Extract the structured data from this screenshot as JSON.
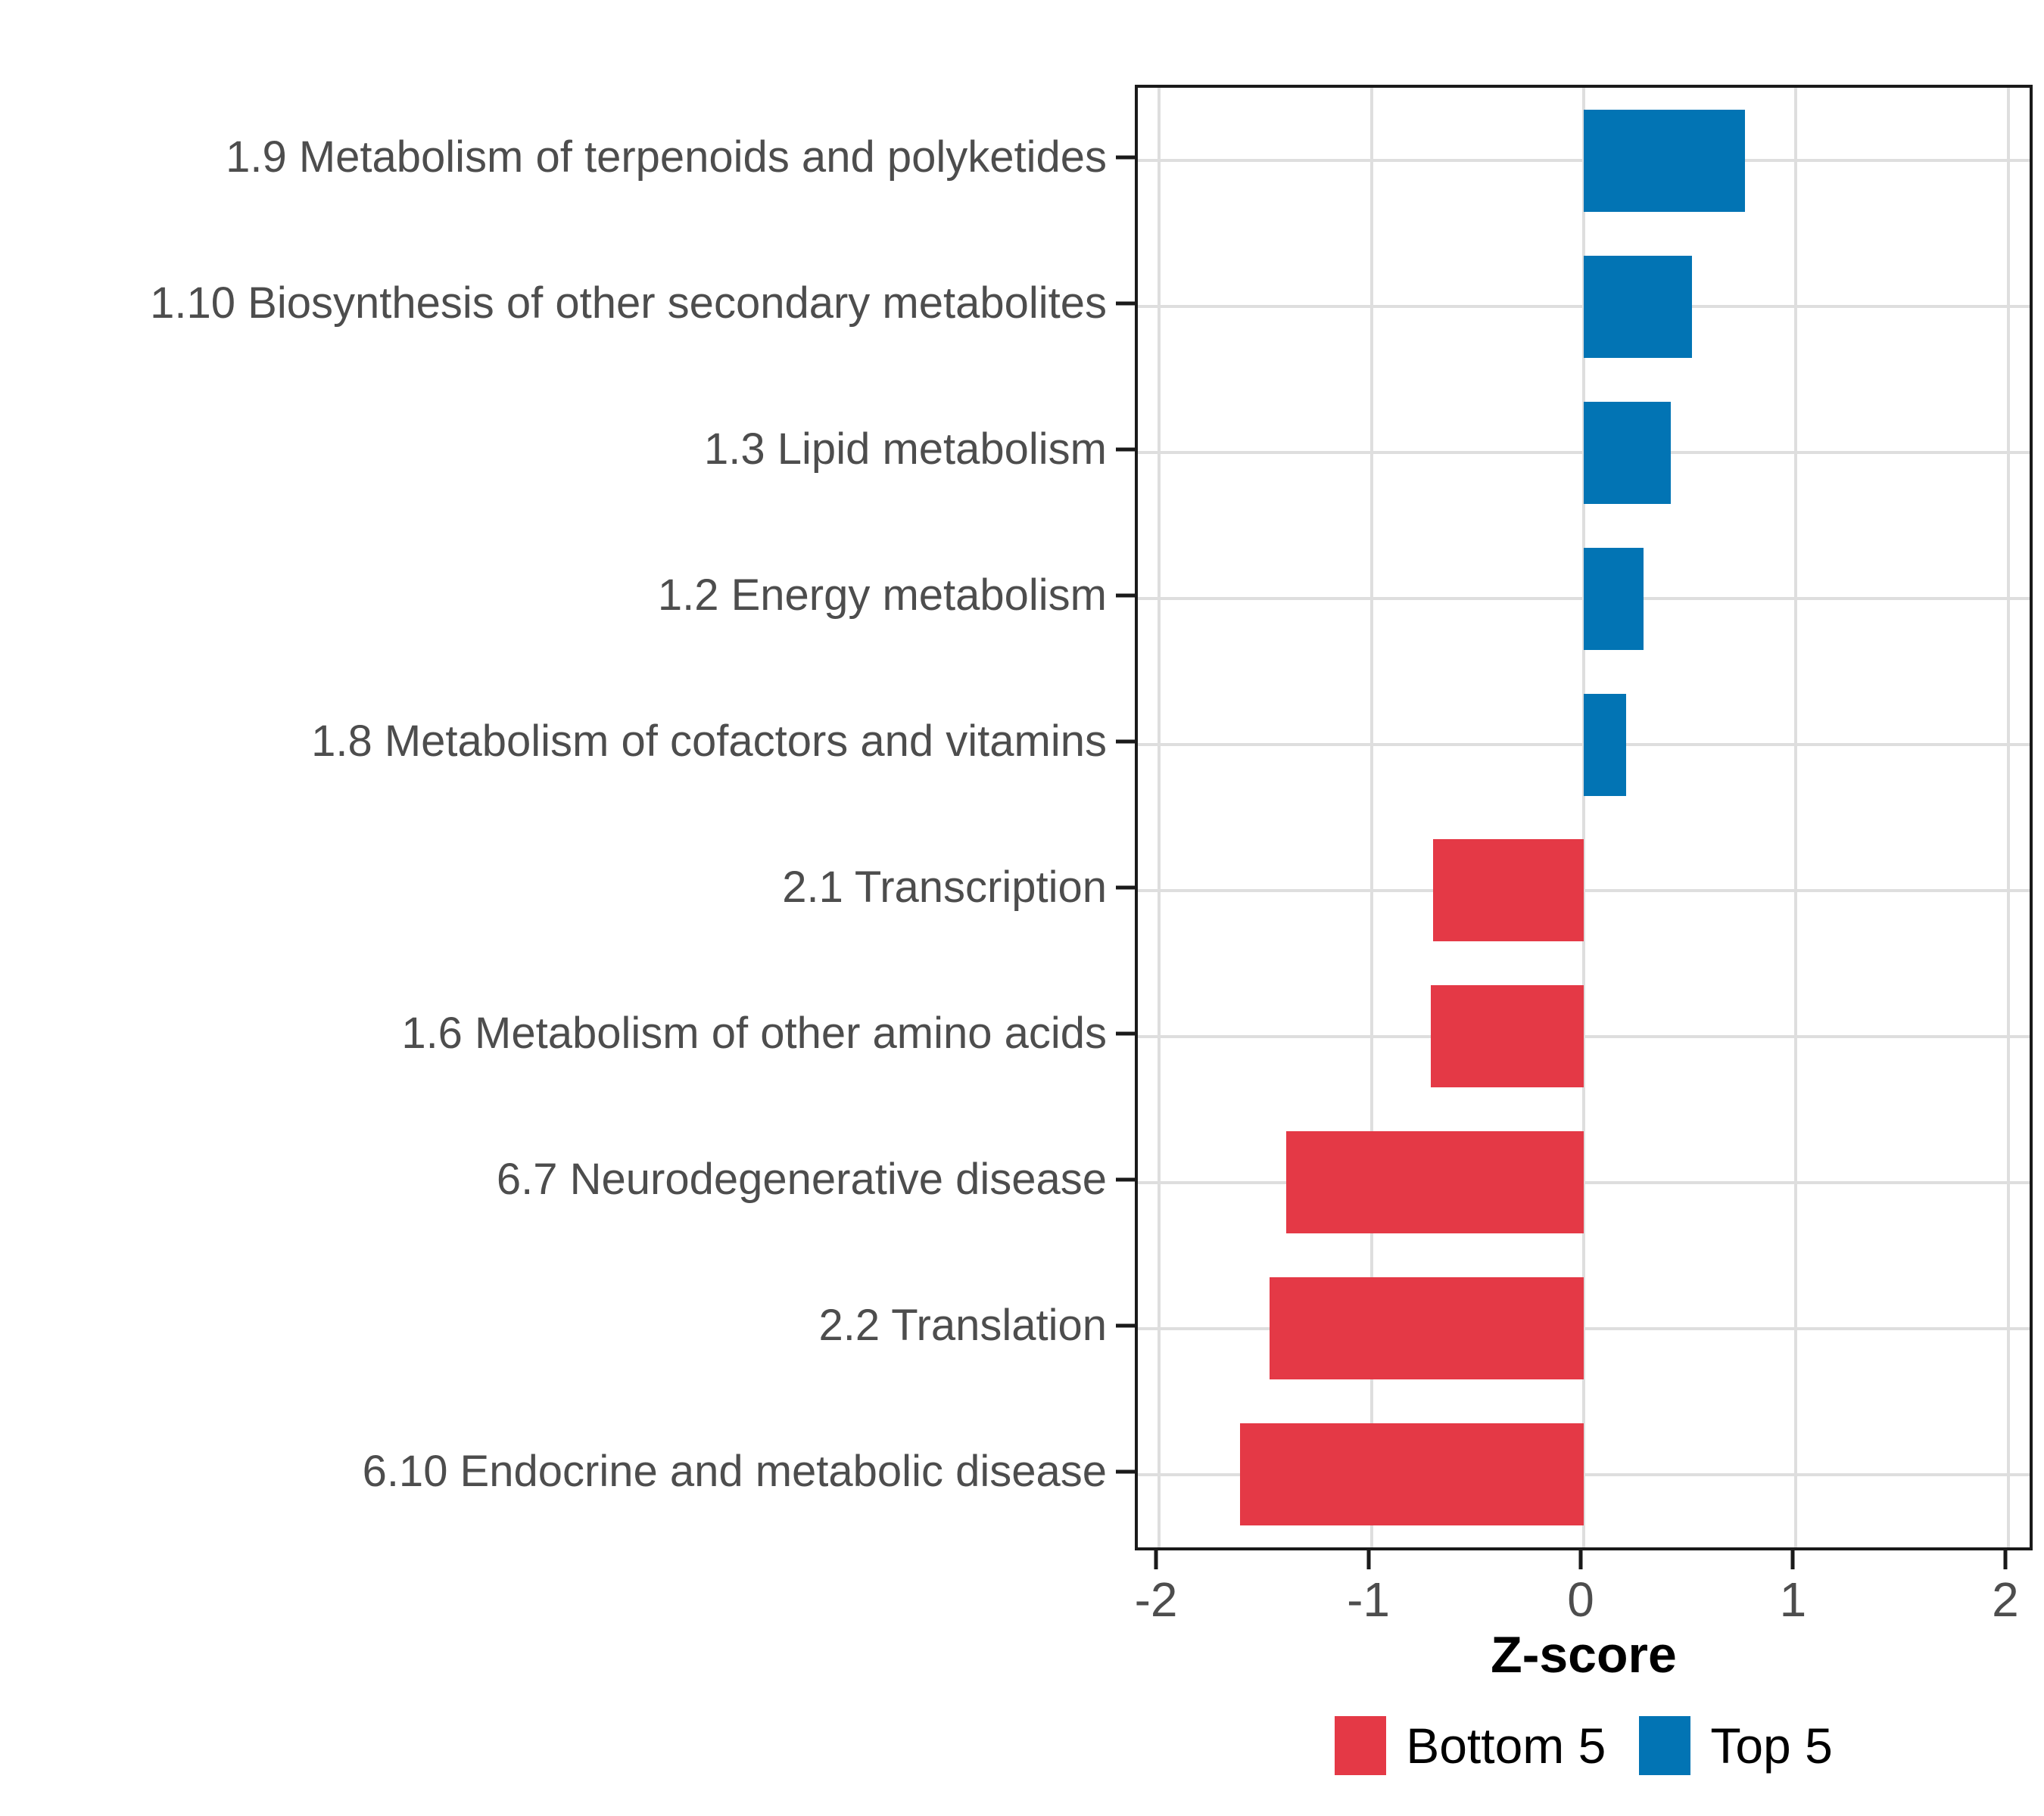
{
  "chart_data": {
    "type": "bar",
    "orientation": "horizontal",
    "title": "",
    "xlabel": "Z-score",
    "ylabel": "",
    "xlim": [
      -2.1,
      2.1
    ],
    "x_ticks": [
      -2,
      -1,
      0,
      1,
      2
    ],
    "x_tick_labels": [
      "-2",
      "-1",
      "0",
      "1",
      "2"
    ],
    "grid": "major-only",
    "panel_border": true,
    "legend_position": "bottom",
    "categories": [
      "1.9 Metabolism of terpenoids and polyketides",
      "1.10 Biosynthesis of other secondary metabolites",
      "1.3 Lipid metabolism",
      "1.2 Energy metabolism",
      "1.8 Metabolism of cofactors and vitamins",
      "2.1 Transcription",
      "1.6 Metabolism of other amino acids",
      "6.7 Neurodegenerative disease",
      "2.2 Translation",
      "6.10 Endocrine and metabolic disease"
    ],
    "values": [
      0.76,
      0.51,
      0.41,
      0.28,
      0.2,
      -0.71,
      -0.72,
      -1.4,
      -1.48,
      -1.62
    ],
    "groups": [
      "Top 5",
      "Top 5",
      "Top 5",
      "Top 5",
      "Top 5",
      "Bottom 5",
      "Bottom 5",
      "Bottom 5",
      "Bottom 5",
      "Bottom 5"
    ],
    "series_colors": {
      "Bottom 5": "#E43946",
      "Top 5": "#0274B4"
    },
    "legend": [
      {
        "label": "Bottom 5",
        "color": "#E43946"
      },
      {
        "label": "Top 5",
        "color": "#0274B4"
      }
    ],
    "colors": {
      "gridline": "#dedede",
      "axis_text": "#4d4d4d",
      "panel_border": "#1a1a1a",
      "background": "#ffffff"
    }
  }
}
